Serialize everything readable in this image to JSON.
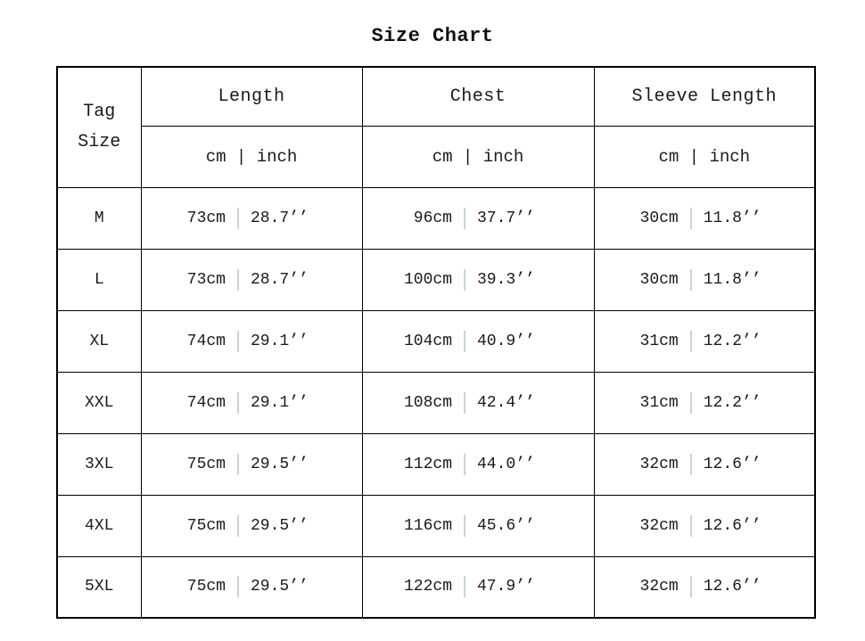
{
  "page": {
    "title": "Size Chart"
  },
  "colors": {
    "background": "#ffffff",
    "border": "#000000",
    "text": "#1a1a1a",
    "data_separator": "#c9d2da"
  },
  "table": {
    "corner": {
      "line1": "Tag",
      "line2": "Size"
    },
    "columns": [
      {
        "label": "Length",
        "unit_header": "cm | inch"
      },
      {
        "label": "Chest",
        "unit_header": "cm | inch"
      },
      {
        "label": "Sleeve Length",
        "unit_header": "cm | inch"
      }
    ],
    "rows": [
      {
        "tag": "M",
        "length": {
          "cm": "73cm",
          "inch": "28.7’’"
        },
        "chest": {
          "cm": "96cm",
          "inch": "37.7’’"
        },
        "sleeve": {
          "cm": "30cm",
          "inch": "11.8’’"
        }
      },
      {
        "tag": "L",
        "length": {
          "cm": "73cm",
          "inch": "28.7’’"
        },
        "chest": {
          "cm": "100cm",
          "inch": "39.3’’"
        },
        "sleeve": {
          "cm": "30cm",
          "inch": "11.8’’"
        }
      },
      {
        "tag": "XL",
        "length": {
          "cm": "74cm",
          "inch": "29.1’’"
        },
        "chest": {
          "cm": "104cm",
          "inch": "40.9’’"
        },
        "sleeve": {
          "cm": "31cm",
          "inch": "12.2’’"
        }
      },
      {
        "tag": "XXL",
        "length": {
          "cm": "74cm",
          "inch": "29.1’’"
        },
        "chest": {
          "cm": "108cm",
          "inch": "42.4’’"
        },
        "sleeve": {
          "cm": "31cm",
          "inch": "12.2’’"
        }
      },
      {
        "tag": "3XL",
        "length": {
          "cm": "75cm",
          "inch": "29.5’’"
        },
        "chest": {
          "cm": "112cm",
          "inch": "44.0’’"
        },
        "sleeve": {
          "cm": "32cm",
          "inch": "12.6’’"
        }
      },
      {
        "tag": "4XL",
        "length": {
          "cm": "75cm",
          "inch": "29.5’’"
        },
        "chest": {
          "cm": "116cm",
          "inch": "45.6’’"
        },
        "sleeve": {
          "cm": "32cm",
          "inch": "12.6’’"
        }
      },
      {
        "tag": "5XL",
        "length": {
          "cm": "75cm",
          "inch": "29.5’’"
        },
        "chest": {
          "cm": "122cm",
          "inch": "47.9’’"
        },
        "sleeve": {
          "cm": "32cm",
          "inch": "12.6’’"
        }
      }
    ]
  },
  "chart_data": {
    "type": "table",
    "title": "Size Chart",
    "columns": [
      "Tag Size",
      "Length cm",
      "Length inch",
      "Chest cm",
      "Chest inch",
      "Sleeve Length cm",
      "Sleeve Length inch"
    ],
    "rows": [
      [
        "M",
        "73cm",
        "28.7’’",
        "96cm",
        "37.7’’",
        "30cm",
        "11.8’’"
      ],
      [
        "L",
        "73cm",
        "28.7’’",
        "100cm",
        "39.3’’",
        "30cm",
        "11.8’’"
      ],
      [
        "XL",
        "74cm",
        "29.1’’",
        "104cm",
        "40.9’’",
        "31cm",
        "12.2’’"
      ],
      [
        "XXL",
        "74cm",
        "29.1’’",
        "108cm",
        "42.4’’",
        "31cm",
        "12.2’’"
      ],
      [
        "3XL",
        "75cm",
        "29.5’’",
        "112cm",
        "44.0’’",
        "32cm",
        "12.6’’"
      ],
      [
        "4XL",
        "75cm",
        "29.5’’",
        "116cm",
        "45.6’’",
        "32cm",
        "12.6’’"
      ],
      [
        "5XL",
        "75cm",
        "29.5’’",
        "122cm",
        "47.9’’",
        "32cm",
        "12.6’’"
      ]
    ]
  }
}
